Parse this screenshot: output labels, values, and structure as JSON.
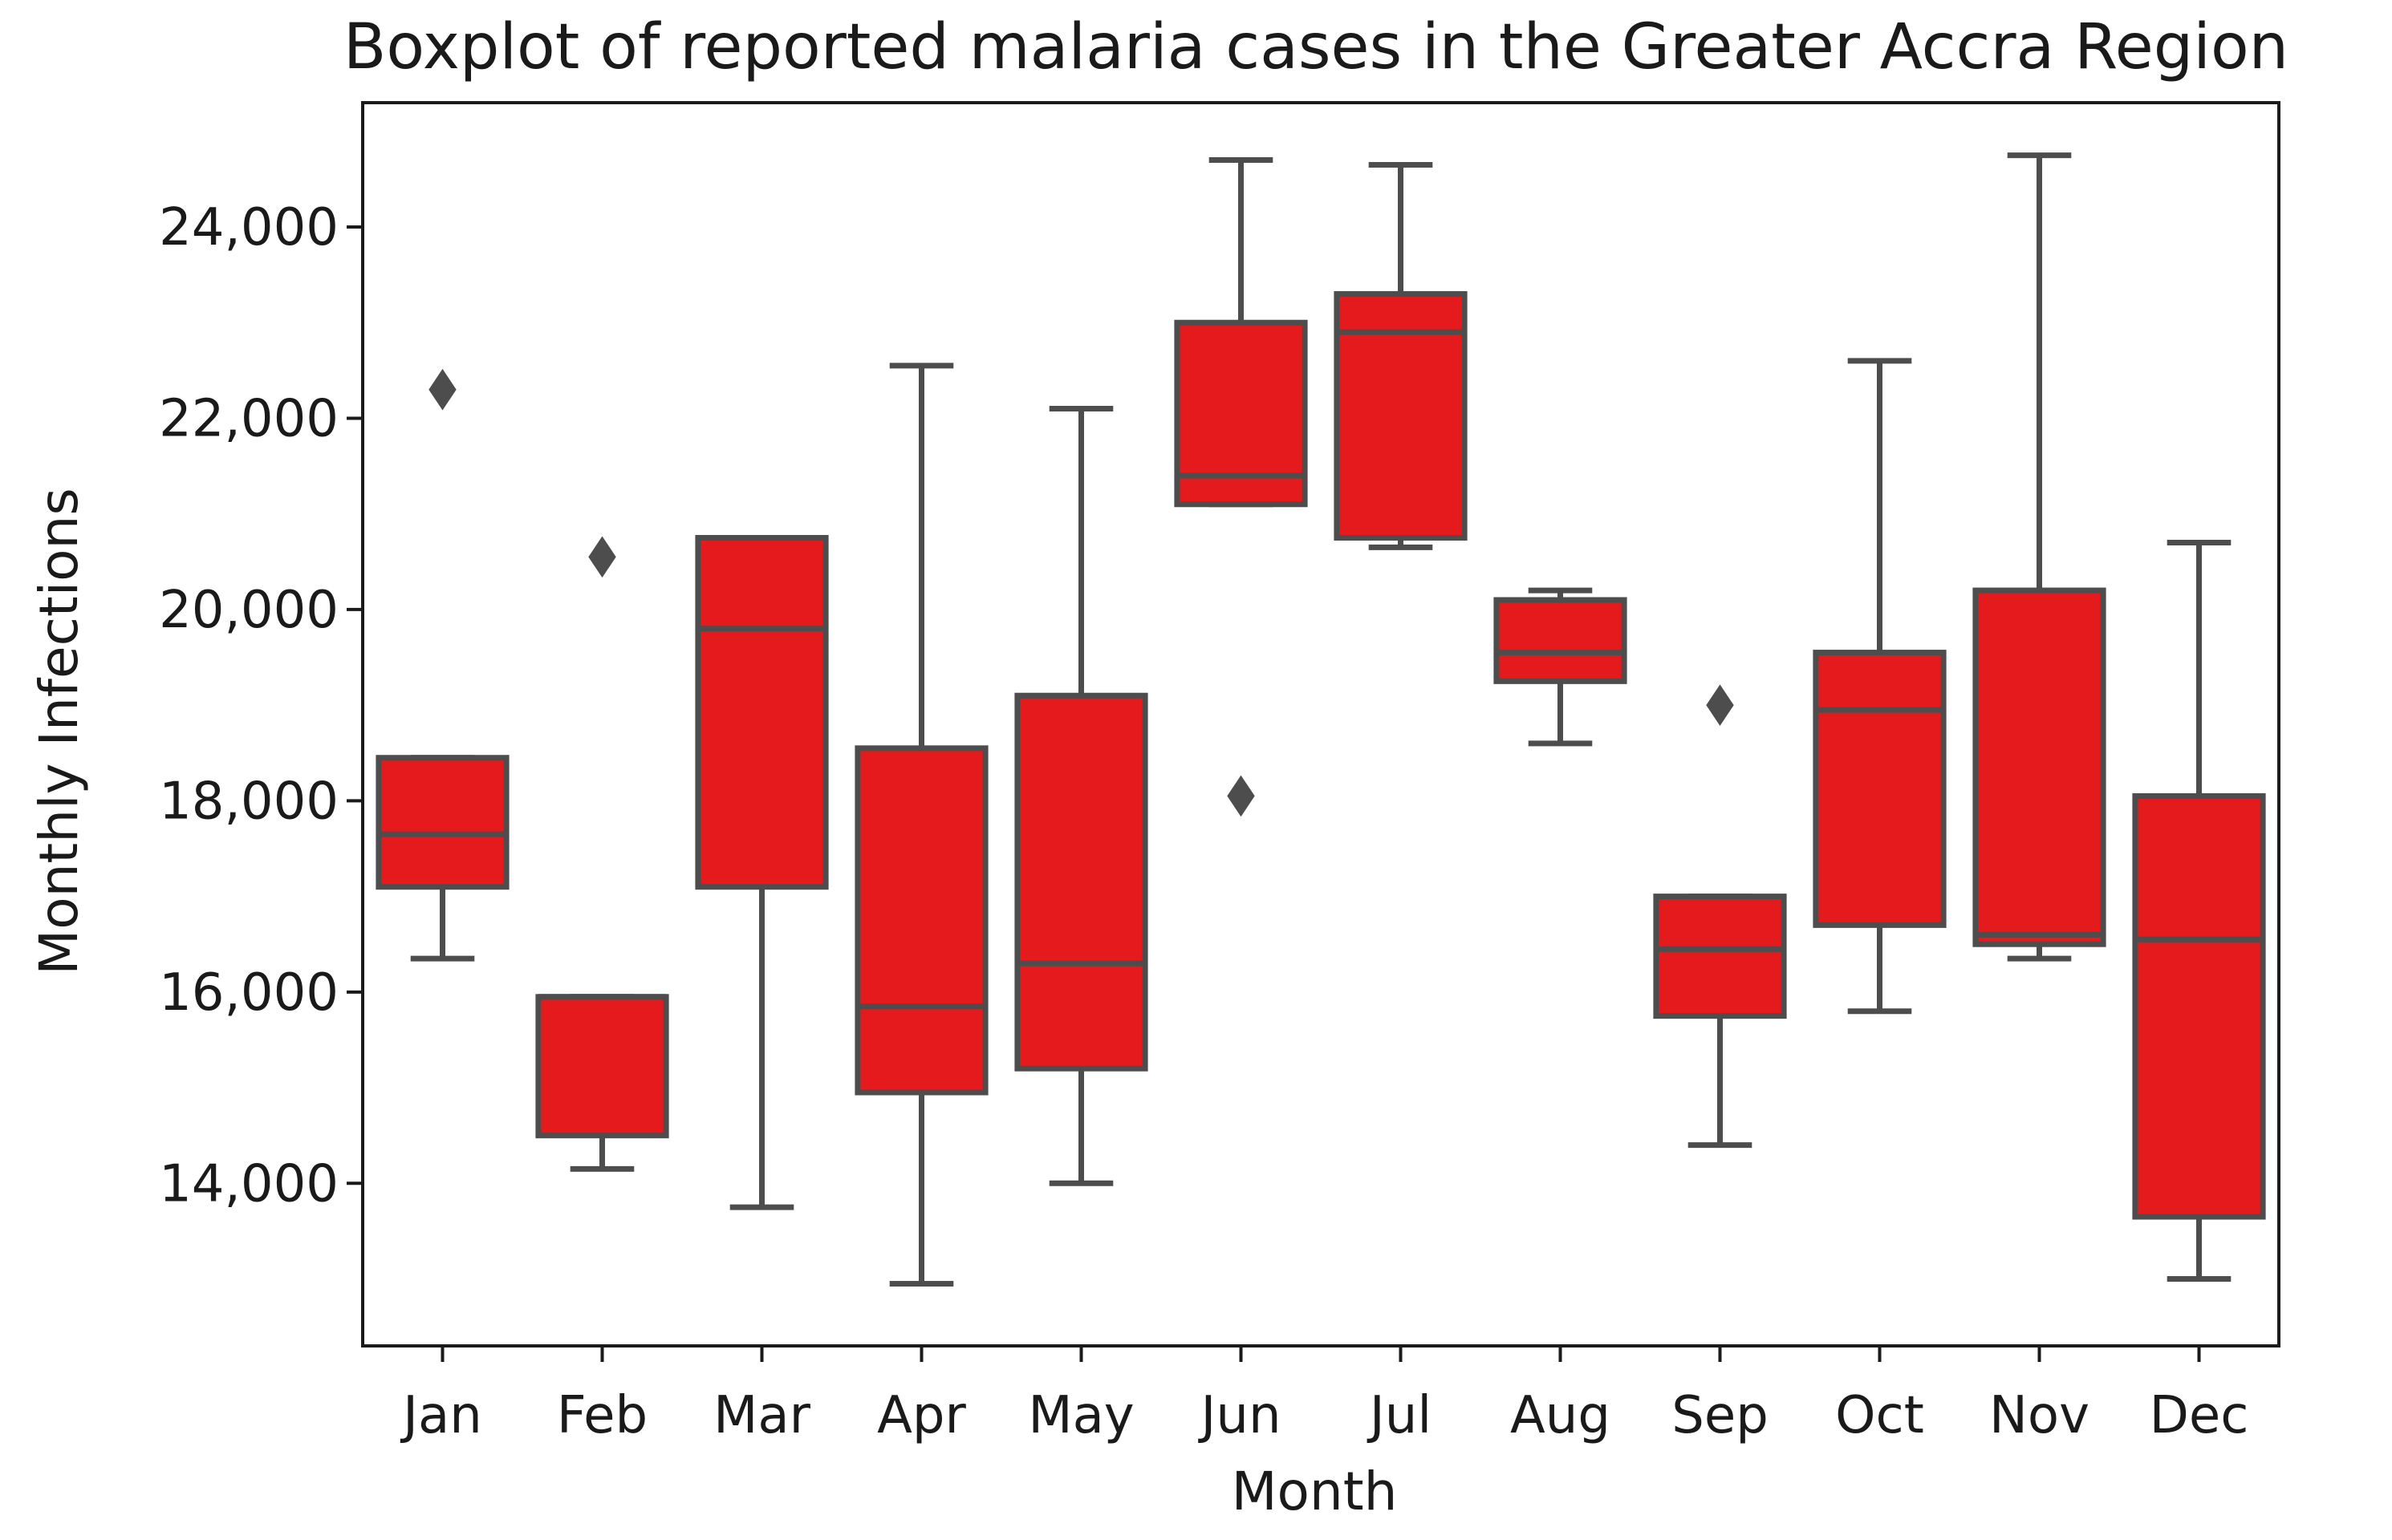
{
  "chart_data": {
    "type": "boxplot",
    "title": "Boxplot of reported malaria cases in the Greater Accra Region",
    "xlabel": "Month",
    "ylabel": "Monthly Infections",
    "ylim": [
      12300,
      25300
    ],
    "yticks": [
      14000,
      16000,
      18000,
      20000,
      22000,
      24000
    ],
    "ytick_labels": [
      "14,000",
      "16,000",
      "18,000",
      "20,000",
      "22,000",
      "24,000"
    ],
    "grid": false,
    "box_color": "#e41a1c",
    "line_color": "#4d4d4d",
    "categories": [
      "Jan",
      "Feb",
      "Mar",
      "Apr",
      "May",
      "Jun",
      "Jul",
      "Aug",
      "Sep",
      "Oct",
      "Nov",
      "Dec"
    ],
    "boxes": [
      {
        "label": "Jan",
        "whisker_low": 16350,
        "q1": 17100,
        "median": 17650,
        "q3": 18450,
        "whisker_high": 18450,
        "outliers": [
          22300
        ]
      },
      {
        "label": "Feb",
        "whisker_low": 14150,
        "q1": 14500,
        "median": 15950,
        "q3": 15950,
        "whisker_high": 15950,
        "outliers": [
          20550
        ]
      },
      {
        "label": "Mar",
        "whisker_low": 13750,
        "q1": 17100,
        "median": 19800,
        "q3": 20750,
        "whisker_high": 20750,
        "outliers": []
      },
      {
        "label": "Apr",
        "whisker_low": 12950,
        "q1": 14950,
        "median": 15850,
        "q3": 18550,
        "whisker_high": 22550,
        "outliers": []
      },
      {
        "label": "May",
        "whisker_low": 14000,
        "q1": 15200,
        "median": 16300,
        "q3": 19100,
        "whisker_high": 22100,
        "outliers": []
      },
      {
        "label": "Jun",
        "whisker_low": 21100,
        "q1": 21100,
        "median": 21400,
        "q3": 23000,
        "whisker_high": 24700,
        "outliers": [
          18050
        ]
      },
      {
        "label": "Jul",
        "whisker_low": 20650,
        "q1": 20750,
        "median": 22900,
        "q3": 23300,
        "whisker_high": 24650,
        "outliers": []
      },
      {
        "label": "Aug",
        "whisker_low": 18600,
        "q1": 19250,
        "median": 19550,
        "q3": 20100,
        "whisker_high": 20200,
        "outliers": []
      },
      {
        "label": "Sep",
        "whisker_low": 14400,
        "q1": 15750,
        "median": 16450,
        "q3": 17000,
        "whisker_high": 17000,
        "outliers": [
          19000
        ]
      },
      {
        "label": "Oct",
        "whisker_low": 15800,
        "q1": 16700,
        "median": 18950,
        "q3": 19550,
        "whisker_high": 22600,
        "outliers": []
      },
      {
        "label": "Nov",
        "whisker_low": 16350,
        "q1": 16500,
        "median": 16600,
        "q3": 20200,
        "whisker_high": 24750,
        "outliers": []
      },
      {
        "label": "Dec",
        "whisker_low": 13000,
        "q1": 13650,
        "median": 16550,
        "q3": 18050,
        "whisker_high": 20700,
        "outliers": []
      }
    ]
  }
}
